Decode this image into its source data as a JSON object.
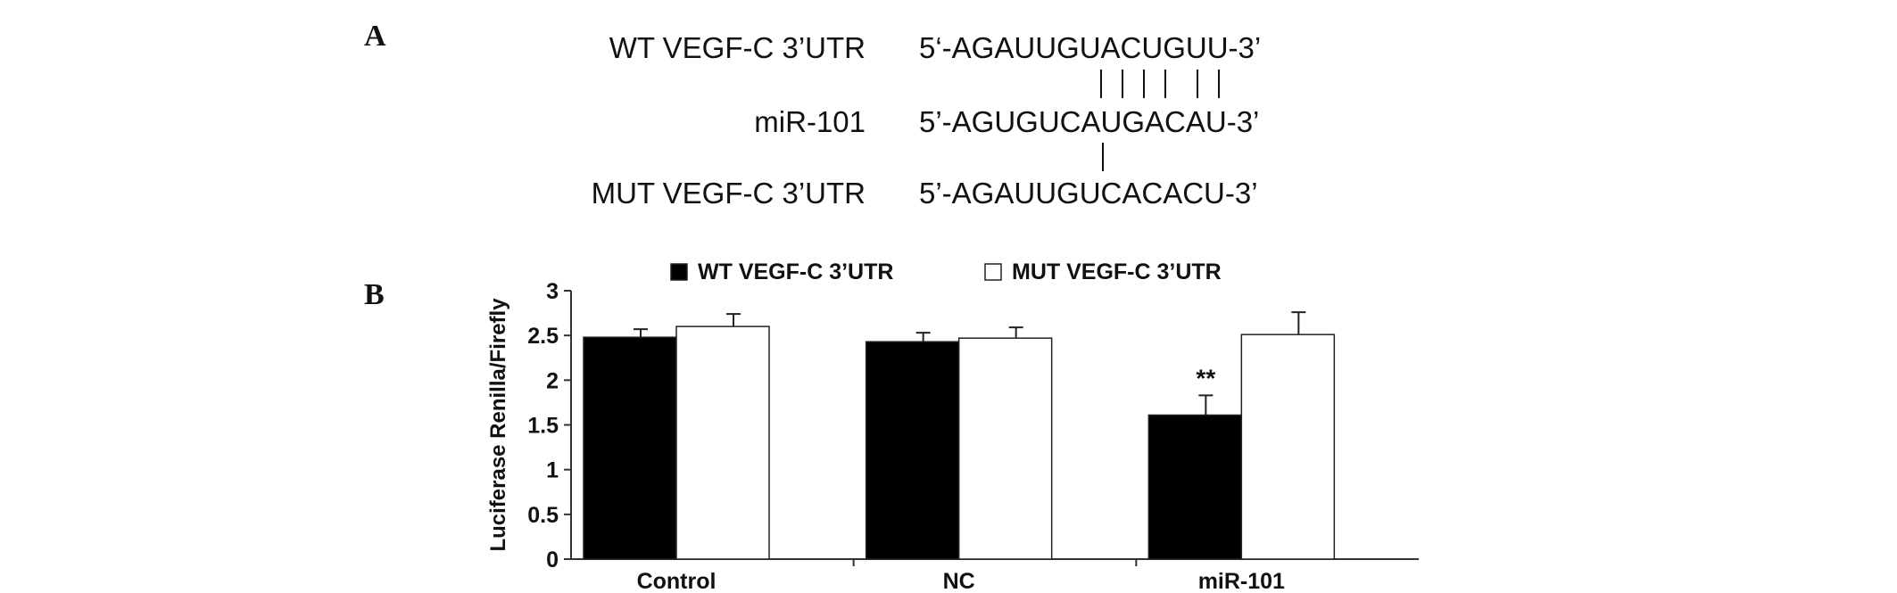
{
  "panel_a": {
    "letter": "A",
    "rows": [
      {
        "label": "WT VEGF-C 3’UTR",
        "sequence": "5‘-AGAUUGUACUGUU-3’"
      },
      {
        "label": "miR-101",
        "sequence": "5’-AGUGUCAUGACAU-3’"
      },
      {
        "label": "MUT VEGF-C 3’UTR",
        "sequence": "5’-AGAUUGUCACACU-3’"
      }
    ]
  },
  "panel_b": {
    "letter": "B"
  },
  "chart_data": {
    "type": "bar",
    "categories": [
      "Control",
      "NC",
      "miR-101"
    ],
    "series": [
      {
        "name": "WT VEGF-C 3’UTR",
        "values": [
          2.48,
          2.43,
          1.61
        ],
        "errors": [
          0.09,
          0.1,
          0.22
        ],
        "color": "#000000"
      },
      {
        "name": "MUT VEGF-C 3’UTR",
        "values": [
          2.6,
          2.47,
          2.51
        ],
        "errors": [
          0.14,
          0.12,
          0.25
        ],
        "color": "#ffffff"
      }
    ],
    "ylabel": "Luciferase Renilla/Firefly",
    "xlabel": "",
    "ylim": [
      0,
      3
    ],
    "yticks": [
      "0",
      "0.5",
      "1",
      "1.5",
      "2",
      "2.5",
      "3"
    ],
    "ytick_values": [
      0,
      0.5,
      1,
      1.5,
      2,
      2.5,
      3
    ],
    "legend_position": "top",
    "annotations": [
      {
        "category": "miR-101",
        "series": 0,
        "text": "**"
      }
    ],
    "grid": false
  }
}
